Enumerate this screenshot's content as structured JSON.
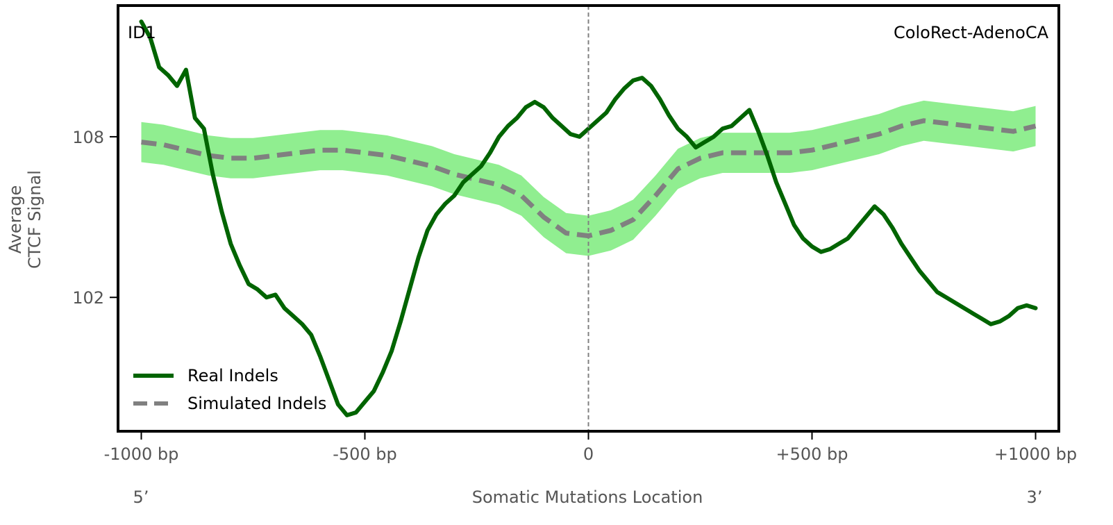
{
  "chart_data": {
    "type": "line",
    "top_left_label": "ID1",
    "top_right_label": "ColoRect-AdenoCA",
    "xlabel": "Somatic Mutations Location",
    "ylabel_line1": "Average",
    "ylabel_line2": "CTCF Signal",
    "x_end_labels": {
      "left": "5’",
      "right": "3’"
    },
    "x_ticks": [
      {
        "value": -1000,
        "label": "-1000 bp"
      },
      {
        "value": -500,
        "label": "-500 bp"
      },
      {
        "value": 0,
        "label": "0"
      },
      {
        "value": 500,
        "label": "+500 bp"
      },
      {
        "value": 1000,
        "label": "+1000 bp"
      }
    ],
    "y_ticks": [
      {
        "value": 102,
        "label": "102"
      },
      {
        "value": 108,
        "label": "108"
      }
    ],
    "xlim": [
      -1052,
      1052
    ],
    "ylim": [
      97.0,
      112.9
    ],
    "vertical_marker_x": 0,
    "legend_position": "lower-left",
    "grid": false,
    "series": [
      {
        "name": "Real Indels",
        "style": "solid",
        "color": "#006400",
        "x": [
          -1000,
          -980,
          -960,
          -940,
          -920,
          -900,
          -880,
          -860,
          -840,
          -820,
          -800,
          -780,
          -760,
          -740,
          -720,
          -700,
          -680,
          -660,
          -640,
          -620,
          -600,
          -580,
          -560,
          -540,
          -520,
          -500,
          -480,
          -460,
          -440,
          -420,
          -400,
          -380,
          -360,
          -340,
          -320,
          -300,
          -280,
          -260,
          -240,
          -220,
          -200,
          -180,
          -160,
          -140,
          -120,
          -100,
          -80,
          -60,
          -40,
          -20,
          0,
          20,
          40,
          60,
          80,
          100,
          120,
          140,
          160,
          180,
          200,
          220,
          240,
          260,
          280,
          300,
          320,
          340,
          360,
          380,
          400,
          420,
          440,
          460,
          480,
          500,
          520,
          540,
          560,
          580,
          600,
          620,
          640,
          660,
          680,
          700,
          720,
          740,
          760,
          780,
          800,
          820,
          840,
          860,
          880,
          900,
          920,
          940,
          960,
          980,
          1000
        ],
        "y": [
          112.3,
          111.7,
          110.6,
          110.3,
          109.9,
          110.5,
          108.7,
          108.3,
          106.6,
          105.2,
          104.0,
          103.2,
          102.5,
          102.3,
          102.0,
          102.1,
          101.6,
          101.3,
          101.0,
          100.6,
          99.8,
          98.9,
          98.0,
          97.6,
          97.7,
          98.1,
          98.5,
          99.2,
          100.0,
          101.1,
          102.3,
          103.5,
          104.5,
          105.1,
          105.5,
          105.8,
          106.3,
          106.6,
          106.9,
          107.4,
          108.0,
          108.4,
          108.7,
          109.1,
          109.3,
          109.1,
          108.7,
          108.4,
          108.1,
          108.0,
          108.3,
          108.6,
          108.9,
          109.4,
          109.8,
          110.1,
          110.2,
          109.9,
          109.4,
          108.8,
          108.3,
          108.0,
          107.6,
          107.8,
          108.0,
          108.3,
          108.4,
          108.7,
          109.0,
          108.2,
          107.3,
          106.3,
          105.5,
          104.7,
          104.2,
          103.9,
          103.7,
          103.8,
          104.0,
          104.2,
          104.6,
          105.0,
          105.4,
          105.1,
          104.6,
          104.0,
          103.5,
          103.0,
          102.6,
          102.2,
          102.0,
          101.8,
          101.6,
          101.4,
          101.2,
          101.0,
          101.1,
          101.3,
          101.6,
          101.7,
          101.6
        ]
      },
      {
        "name": "Simulated Indels",
        "style": "dashed",
        "color": "#808080",
        "band_color": "#90EE90",
        "band_halfwidth": 0.75,
        "x": [
          -1000,
          -950,
          -900,
          -850,
          -800,
          -750,
          -700,
          -650,
          -600,
          -550,
          -500,
          -450,
          -400,
          -350,
          -300,
          -250,
          -200,
          -150,
          -100,
          -50,
          0,
          50,
          100,
          150,
          200,
          250,
          300,
          350,
          400,
          450,
          500,
          550,
          600,
          650,
          700,
          750,
          800,
          850,
          900,
          950,
          1000
        ],
        "y": [
          107.8,
          107.7,
          107.5,
          107.3,
          107.2,
          107.2,
          107.3,
          107.4,
          107.5,
          107.5,
          107.4,
          107.3,
          107.1,
          106.9,
          106.6,
          106.4,
          106.2,
          105.8,
          105.0,
          104.4,
          104.3,
          104.5,
          104.9,
          105.8,
          106.8,
          107.2,
          107.4,
          107.4,
          107.4,
          107.4,
          107.5,
          107.7,
          107.9,
          108.1,
          108.4,
          108.6,
          108.5,
          108.4,
          108.3,
          108.2,
          108.4
        ]
      }
    ]
  }
}
